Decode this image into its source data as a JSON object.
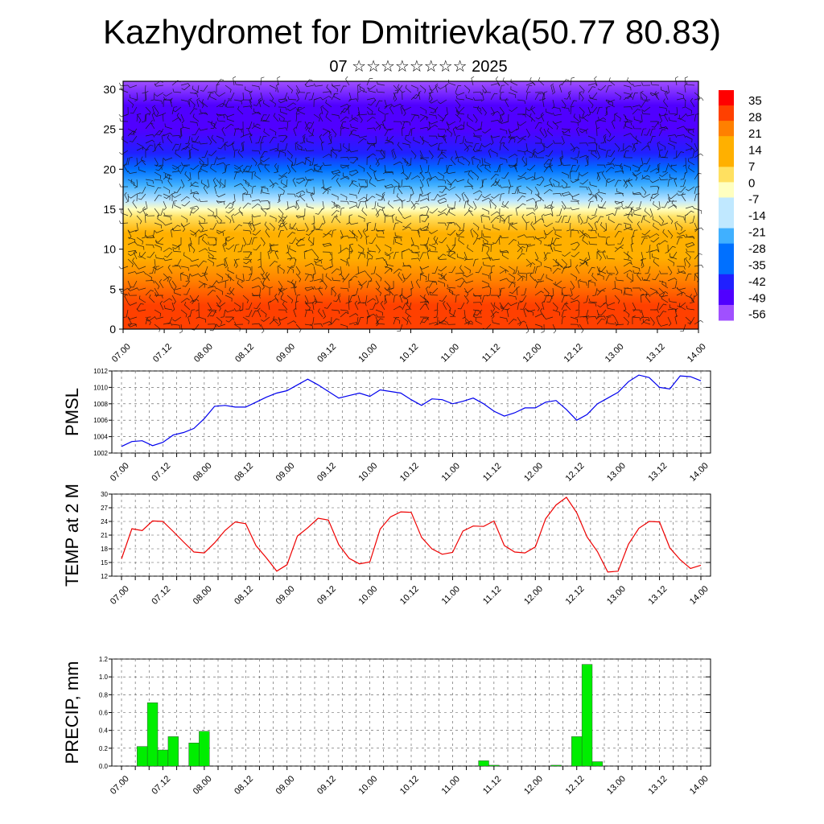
{
  "header": {
    "title": "Kazhydromet for Dmitrievka(50.77 80.83)",
    "subtitle": "07 ☆☆☆☆☆☆☆☆ 2025"
  },
  "time_ticks": [
    "07.00",
    "07.12",
    "08.00",
    "08.12",
    "09.00",
    "09.12",
    "10.00",
    "10.12",
    "11.00",
    "11.12",
    "12.00",
    "12.12",
    "13.00",
    "13.12",
    "14.00"
  ],
  "chart_data": [
    {
      "type": "heatmap",
      "title": "",
      "ylim": [
        0,
        31
      ],
      "yticks": [
        "0",
        "5",
        "10",
        "15",
        "20",
        "25",
        "30"
      ],
      "colorbar": {
        "labels": [
          "35",
          "28",
          "21",
          "14",
          "7",
          "0",
          "-7",
          "-14",
          "-21",
          "-28",
          "-35",
          "-42",
          "-49",
          "-56"
        ],
        "range": [
          -63,
          42
        ]
      },
      "profile": {
        "levels": [
          0,
          3,
          6,
          9,
          12,
          14,
          15,
          16,
          18,
          20,
          22,
          25,
          28,
          31
        ],
        "temps": [
          32,
          28,
          22,
          16,
          10,
          3,
          -6,
          -12,
          -24,
          -34,
          -42,
          -50,
          -56,
          -60
        ]
      },
      "palette": [
        "#ff0000",
        "#ff4000",
        "#ff8000",
        "#ffb000",
        "#ffe060",
        "#ffffc0",
        "#c0e8ff",
        "#40b0ff",
        "#0070ff",
        "#2020ff",
        "#5000ff",
        "#a050ff"
      ]
    },
    {
      "type": "line",
      "ylabel": "PMSL",
      "ylim": [
        1002,
        1012
      ],
      "yticks": [
        "1002",
        "1004",
        "1006",
        "1008",
        "1010",
        "1012"
      ],
      "x": [
        0,
        3,
        6,
        9,
        12,
        15,
        18,
        21,
        24,
        27,
        30,
        33,
        36,
        39,
        42,
        45,
        48,
        51,
        54,
        57,
        60,
        63,
        66,
        69,
        72,
        75,
        78,
        81,
        84,
        87,
        90,
        93,
        96,
        99,
        102,
        105,
        108,
        111,
        114,
        117,
        120,
        123,
        126,
        129,
        132,
        135,
        138,
        141,
        144,
        147,
        150,
        153,
        156,
        159,
        162,
        165,
        168
      ],
      "values": [
        1002.8,
        1003.4,
        1003.5,
        1002.9,
        1003.3,
        1004.2,
        1004.5,
        1005.0,
        1006.2,
        1007.7,
        1007.8,
        1007.6,
        1007.6,
        1008.2,
        1008.8,
        1009.3,
        1009.6,
        1010.3,
        1011.0,
        1010.3,
        1009.5,
        1008.7,
        1009.0,
        1009.3,
        1008.9,
        1009.7,
        1009.5,
        1009.3,
        1008.5,
        1007.8,
        1008.6,
        1008.5,
        1008.0,
        1008.3,
        1008.7,
        1008.0,
        1007.1,
        1006.5,
        1006.9,
        1007.5,
        1007.5,
        1008.2,
        1008.4,
        1007.3,
        1006.0,
        1006.7,
        1008.0,
        1008.7,
        1009.4,
        1010.7,
        1011.5,
        1011.2,
        1010.0,
        1009.8,
        1011.4,
        1011.3,
        1010.8
      ]
    },
    {
      "type": "line",
      "ylabel": "TEMP at 2 M",
      "ylim": [
        12,
        30
      ],
      "yticks": [
        "12",
        "15",
        "18",
        "21",
        "24",
        "27",
        "30"
      ],
      "x": [
        0,
        3,
        6,
        9,
        12,
        15,
        18,
        21,
        24,
        27,
        30,
        33,
        36,
        39,
        42,
        45,
        48,
        51,
        54,
        57,
        60,
        63,
        66,
        69,
        72,
        75,
        78,
        81,
        84,
        87,
        90,
        93,
        96,
        99,
        102,
        105,
        108,
        111,
        114,
        117,
        120,
        123,
        126,
        129,
        132,
        135,
        138,
        141,
        144,
        147,
        150,
        153,
        156,
        159,
        162,
        165,
        168
      ],
      "values": [
        15.8,
        22.4,
        22.0,
        24.1,
        24.0,
        21.8,
        19.5,
        17.3,
        17.1,
        19.3,
        22.0,
        23.9,
        23.5,
        18.7,
        16.0,
        13.1,
        14.5,
        20.8,
        22.6,
        24.7,
        24.3,
        18.9,
        15.9,
        14.7,
        15.1,
        22.3,
        25.0,
        26.1,
        26.0,
        20.5,
        18.0,
        16.8,
        17.2,
        21.9,
        23.0,
        22.9,
        24.1,
        18.7,
        17.3,
        17.1,
        18.4,
        24.6,
        27.6,
        29.3,
        25.9,
        20.6,
        17.4,
        12.9,
        13.1,
        19.0,
        22.5,
        24.0,
        23.9,
        18.2,
        15.6,
        13.7,
        14.4
      ]
    },
    {
      "type": "bar",
      "ylabel": "PRECIP, mm",
      "ylim": [
        0,
        1.2
      ],
      "yticks": [
        "0.0",
        "0.2",
        "0.4",
        "0.6",
        "0.8",
        "1.0",
        "1.2"
      ],
      "bar_width_hours": 3,
      "x": [
        6,
        9,
        12,
        15,
        21,
        24,
        105,
        108,
        126,
        132,
        135,
        138
      ],
      "values": [
        0.22,
        0.71,
        0.18,
        0.33,
        0.26,
        0.39,
        0.06,
        0.01,
        0.01,
        0.33,
        1.14,
        0.05
      ]
    }
  ]
}
